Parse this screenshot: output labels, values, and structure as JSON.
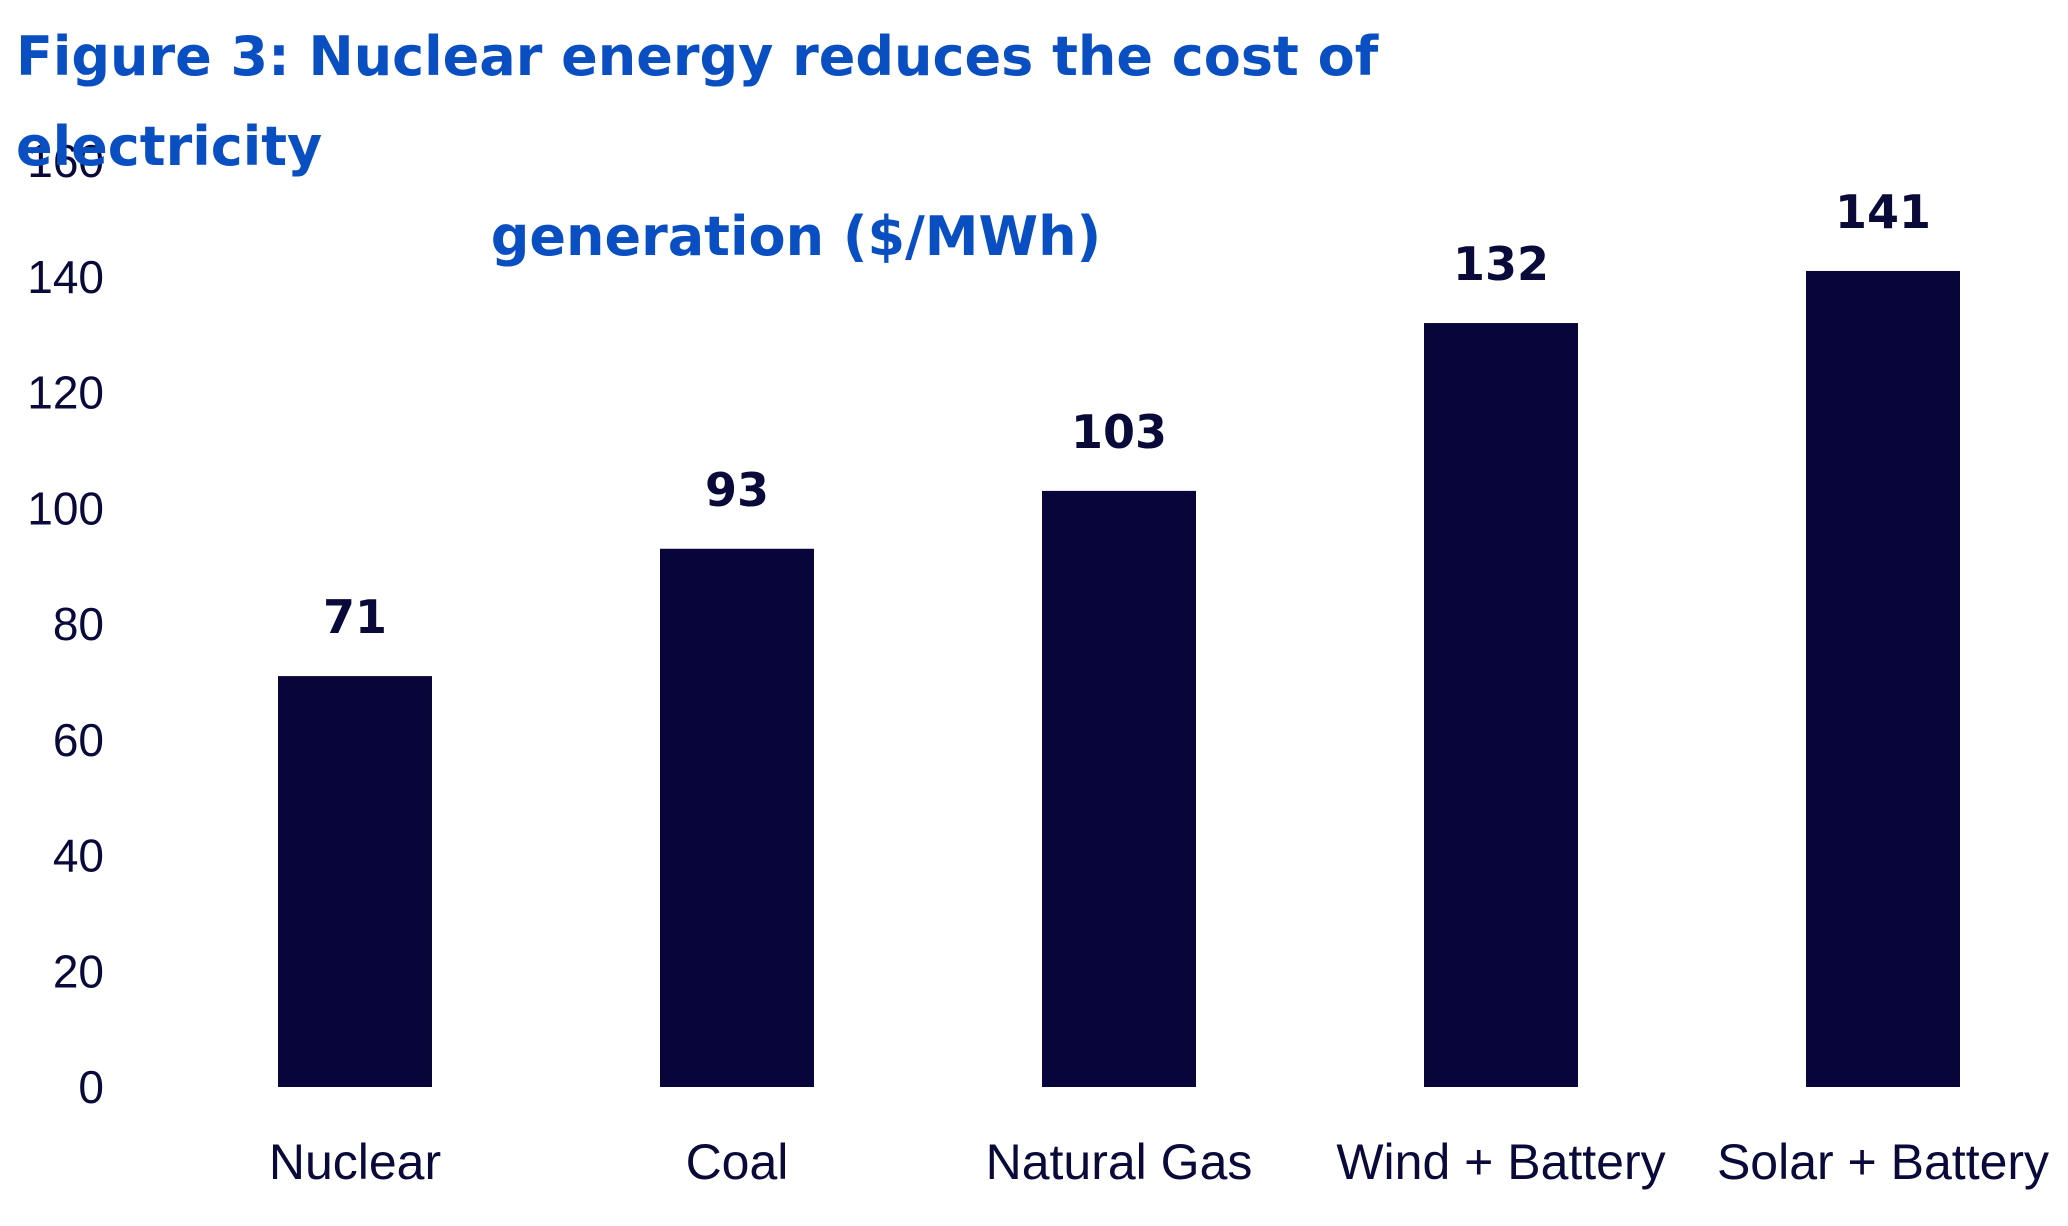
{
  "chart_data": {
    "type": "bar",
    "title_line1": "Figure 3: Nuclear energy reduces the cost of electricity",
    "title_line2": "generation ($/MWh)",
    "categories": [
      "Nuclear",
      "Coal",
      "Natural Gas",
      "Wind + Battery",
      "Solar + Battery"
    ],
    "values": [
      71,
      93,
      103,
      132,
      141
    ],
    "data_labels": [
      "71",
      "93",
      "103",
      "132",
      "141"
    ],
    "ylim": [
      0,
      160
    ],
    "yticks": [
      0,
      20,
      40,
      60,
      80,
      100,
      120,
      140,
      160
    ],
    "xlabel": "",
    "ylabel": "",
    "grid": false,
    "bar_color": "#07053a",
    "title_color": "#0a4fc2"
  }
}
